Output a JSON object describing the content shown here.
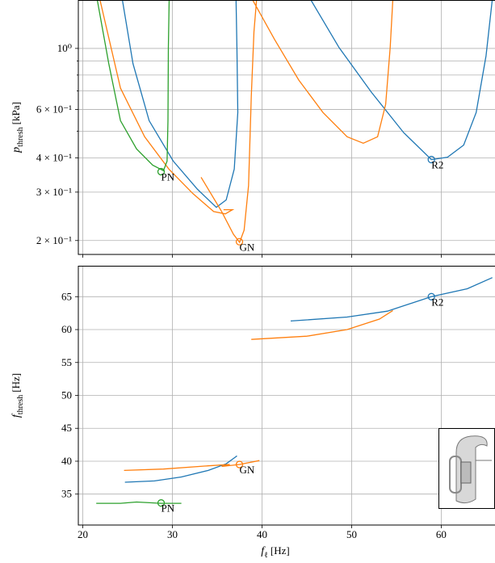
{
  "chart_data": [
    {
      "type": "line",
      "ylog": true,
      "grid": true,
      "show_xticklabels": false,
      "xlim": [
        19.5,
        66
      ],
      "xticks": [
        20,
        30,
        40,
        50,
        60
      ],
      "ylim": [
        0.178,
        1.5
      ],
      "yticks": [
        {
          "value": 1,
          "label": "10⁰"
        },
        {
          "value": 0.6,
          "label": "6 × 10⁻¹"
        },
        {
          "value": 0.4,
          "label": "4 × 10⁻¹"
        },
        {
          "value": 0.3,
          "label": "3 × 10⁻¹"
        },
        {
          "value": 0.2,
          "label": "2 × 10⁻¹"
        }
      ],
      "yminorticks": [
        0.5,
        0.7,
        0.8,
        0.9
      ],
      "ylabel": {
        "symbol": "p",
        "subscript": "thresh",
        "unit": "[kPa]"
      },
      "series": [
        {
          "color": "#1f77b4",
          "x": [
            24.4,
            25.6,
            27.4,
            30.1,
            32.8,
            34.9,
            36.0,
            36.9,
            37.3,
            37.2,
            37.1,
            null,
            45.4,
            48.6,
            52.2,
            55.8,
            58.9,
            60.7,
            62.5,
            63.9,
            65.0,
            65.7
          ],
          "values": [
            1.51,
            0.88,
            0.546,
            0.389,
            0.307,
            0.264,
            0.281,
            0.364,
            0.585,
            1.007,
            1.51,
            null,
            1.51,
            1.007,
            0.693,
            0.494,
            0.394,
            0.402,
            0.445,
            0.585,
            0.94,
            1.51
          ]
        },
        {
          "color": "#ff7f0e",
          "x": [
            21.9,
            24.2,
            26.9,
            29.6,
            32.3,
            34.6,
            35.9,
            36.7,
            35.7,
            null,
            33.2,
            35.5,
            36.8,
            37.5,
            38.0,
            38.5,
            38.8,
            39.1,
            39.4,
            null,
            38.9,
            41.4,
            44.1,
            46.8,
            49.5,
            51.3,
            52.9,
            53.8,
            54.3,
            54.6
          ],
          "values": [
            1.51,
            0.717,
            0.477,
            0.364,
            0.296,
            0.255,
            0.25,
            0.259,
            0.259,
            null,
            0.34,
            0.255,
            0.211,
            0.197,
            0.218,
            0.317,
            0.67,
            1.15,
            1.51,
            null,
            1.51,
            1.078,
            0.767,
            0.585,
            0.477,
            0.452,
            0.477,
            0.626,
            1.007,
            1.51
          ]
        },
        {
          "color": "#2ca02c",
          "x": [
            21.6,
            22.9,
            24.2,
            26.0,
            27.8,
            29.0,
            29.4,
            29.5,
            29.55,
            29.64
          ],
          "values": [
            1.51,
            0.88,
            0.546,
            0.431,
            0.376,
            0.359,
            0.389,
            0.546,
            1.007,
            1.51
          ]
        }
      ],
      "annotations": [
        {
          "text": "PN",
          "x": 28.74,
          "y": 0.356,
          "color": "#2ca02c"
        },
        {
          "text": "GN",
          "x": 37.48,
          "y": 0.198,
          "color": "#ff7f0e"
        },
        {
          "text": "R2",
          "x": 58.9,
          "y": 0.394,
          "color": "#1f77b4"
        }
      ]
    },
    {
      "type": "line",
      "ylog": false,
      "grid": true,
      "show_xticklabels": true,
      "xlim": [
        19.5,
        66
      ],
      "xticks": [
        20,
        30,
        40,
        50,
        60
      ],
      "ylim": [
        30.3,
        69.7
      ],
      "yticks": [
        35,
        40,
        45,
        50,
        55,
        60,
        65
      ],
      "ylabel": {
        "symbol": "f",
        "subscript": "thresh",
        "unit": "[Hz]"
      },
      "xlabel": {
        "symbol": "f",
        "subscript": "ℓ",
        "unit": "[Hz]"
      },
      "series": [
        {
          "color": "#1f77b4",
          "x": [
            24.7,
            28,
            31,
            34,
            36,
            37.2,
            36.9,
            null,
            43.2,
            49.5,
            54,
            58.9,
            62.9,
            65.7
          ],
          "values": [
            36.8,
            37.0,
            37.6,
            38.6,
            39.6,
            40.8,
            40.5,
            null,
            61.3,
            61.9,
            62.8,
            65.0,
            66.2,
            67.9
          ]
        },
        {
          "color": "#ff7f0e",
          "x": [
            24.6,
            29,
            34,
            36.4,
            35.5,
            37.5,
            39.7,
            null,
            38.8,
            45.0,
            49.5,
            53.1,
            54.6
          ],
          "values": [
            38.6,
            38.8,
            39.3,
            39.5,
            39.2,
            39.5,
            40.1,
            null,
            58.5,
            59.0,
            60.0,
            61.6,
            62.9
          ]
        },
        {
          "color": "#2ca02c",
          "x": [
            21.5,
            24.2,
            26.0,
            28.7,
            31.0
          ],
          "values": [
            33.6,
            33.6,
            33.8,
            33.6,
            33.6
          ]
        }
      ],
      "annotations": [
        {
          "text": "PN",
          "x": 28.74,
          "y": 33.65,
          "color": "#2ca02c"
        },
        {
          "text": "GN",
          "x": 37.48,
          "y": 39.5,
          "color": "#ff7f0e"
        },
        {
          "text": "R2",
          "x": 58.9,
          "y": 65.0,
          "color": "#1f77b4"
        }
      ]
    }
  ]
}
